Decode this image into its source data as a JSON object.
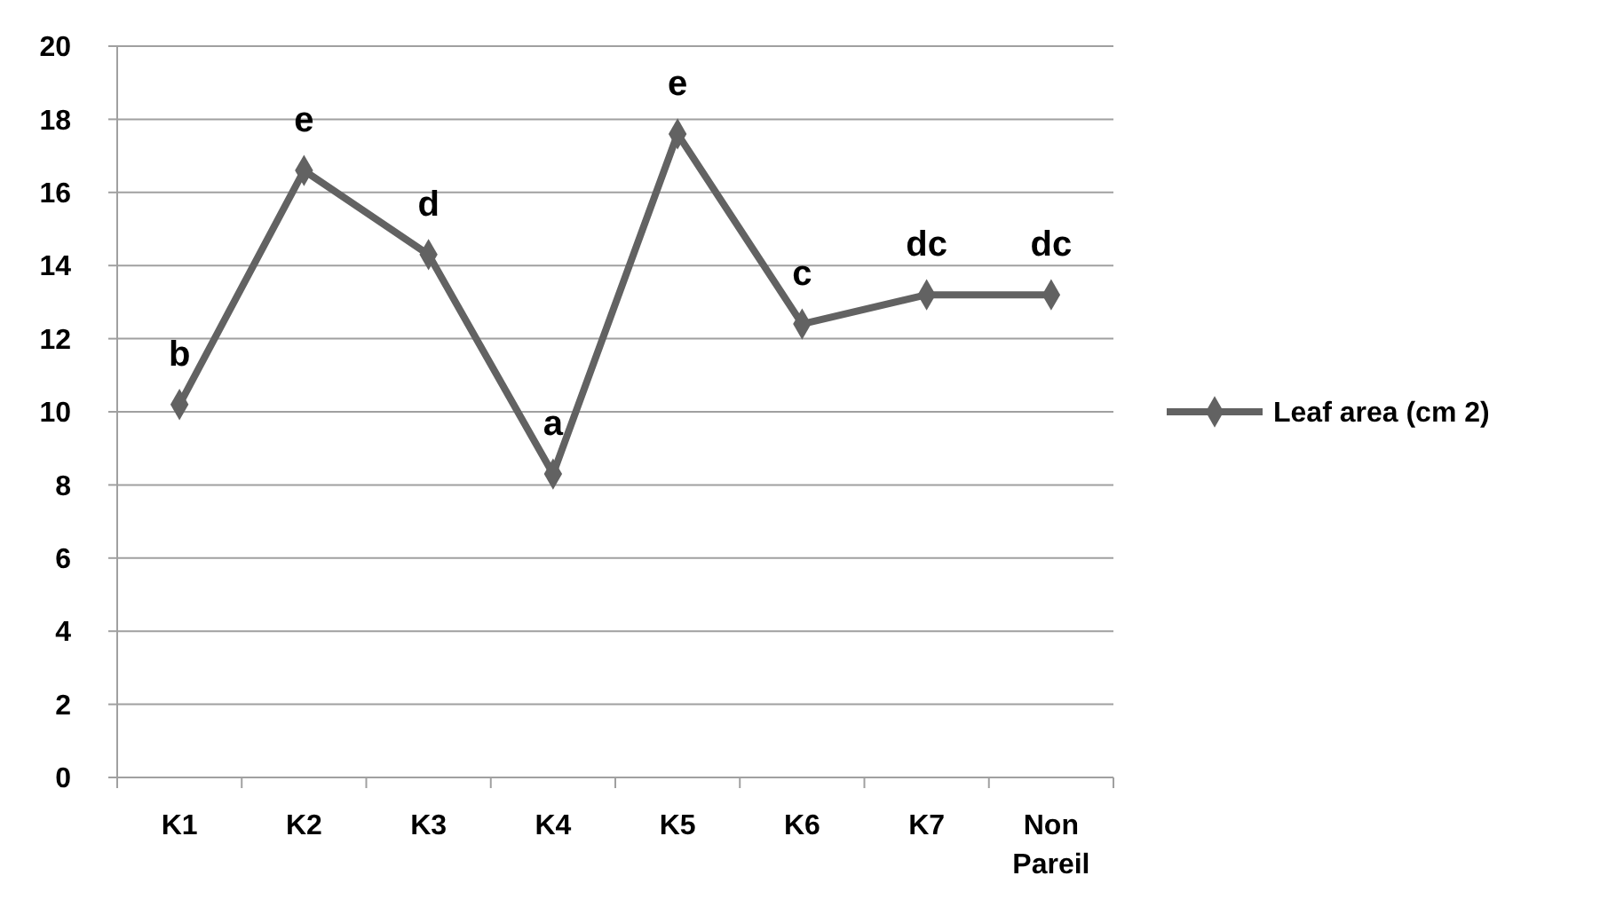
{
  "chart_data": {
    "type": "line",
    "categories": [
      "K1",
      "K2",
      "K3",
      "K4",
      "K5",
      "K6",
      "K7",
      "Non Pareil"
    ],
    "series": [
      {
        "name": "Leaf area (cm 2)",
        "color": "#626262",
        "values": [
          10.2,
          16.6,
          14.3,
          8.3,
          17.6,
          12.4,
          13.2,
          13.2
        ]
      }
    ],
    "ylim": [
      0,
      20
    ],
    "yticks": [
      0,
      2,
      4,
      6,
      8,
      10,
      12,
      14,
      16,
      18,
      20
    ],
    "grid": "y",
    "legend": "right",
    "marker": "diamond",
    "line_style": "solid",
    "annotations": [
      {
        "text": "b",
        "x": "K1",
        "y": 10.2
      },
      {
        "text": "e",
        "x": "K2",
        "y": 16.6
      },
      {
        "text": "d",
        "x": "K3",
        "y": 14.3
      },
      {
        "text": "a",
        "x": "K4",
        "y": 8.3
      },
      {
        "text": "e",
        "x": "K5",
        "y": 17.6
      },
      {
        "text": "c",
        "x": "K6",
        "y": 12.4
      },
      {
        "text": "dc",
        "x": "K7",
        "y": 13.2
      },
      {
        "text": "dc",
        "x": "Non Pareil",
        "y": 13.2
      }
    ]
  }
}
